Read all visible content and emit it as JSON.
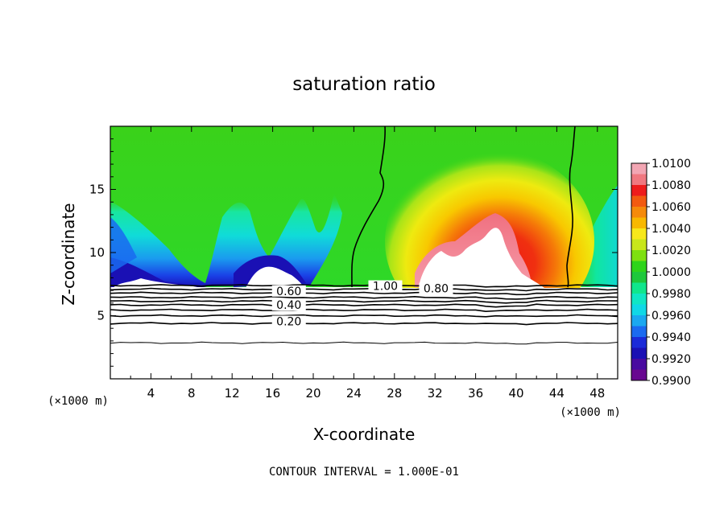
{
  "chart_data": {
    "type": "heatmap",
    "title": "saturation ratio",
    "xlabel": "X-coordinate",
    "ylabel": "Z-coordinate",
    "x_unit": "(×1000 m)",
    "y_unit": "",
    "xlim": [
      0,
      50
    ],
    "ylim": [
      0,
      20
    ],
    "x_ticks": [
      4,
      8,
      12,
      16,
      20,
      24,
      28,
      32,
      36,
      40,
      44,
      48
    ],
    "y_ticks": [
      5,
      10,
      15
    ],
    "footer": "CONTOUR INTERVAL = 1.000E-01",
    "colorbar": {
      "min": 0.99,
      "max": 1.01,
      "labels": [
        "1.0100",
        "1.0080",
        "1.0060",
        "1.0040",
        "1.0020",
        "1.0000",
        "0.9980",
        "0.9960",
        "0.9940",
        "0.9920",
        "0.9900"
      ],
      "colors": [
        "#f2a6b3",
        "#f07880",
        "#ee1c1c",
        "#f25a10",
        "#f58a0a",
        "#f8b800",
        "#f7e81a",
        "#c8e61a",
        "#7ee010",
        "#2ed41a",
        "#1ec83c",
        "#10e68c",
        "#10e6c4",
        "#10d8e6",
        "#1aa8f0",
        "#1a6af0",
        "#1a2ad8",
        "#1a10b4",
        "#480aa0",
        "#680890"
      ]
    },
    "contour_labels": [
      {
        "text": "1.00",
        "x": 27.1,
        "z": 7.1
      },
      {
        "text": "0.80",
        "x": 32.1,
        "z": 6.9
      },
      {
        "text": "0.60",
        "x": 17.6,
        "z": 6.7
      },
      {
        "text": "0.40",
        "x": 17.6,
        "z": 5.6
      },
      {
        "text": "0.20",
        "x": 17.6,
        "z": 4.3
      }
    ],
    "contours_below": [
      {
        "level": 1.0,
        "z": 7.4
      },
      {
        "level": 0.9,
        "z": 7.1
      },
      {
        "level": 0.8,
        "z": 6.8
      },
      {
        "level": 0.7,
        "z": 6.45
      },
      {
        "level": 0.6,
        "z": 6.15
      },
      {
        "level": 0.5,
        "z": 5.85
      },
      {
        "level": 0.4,
        "z": 5.45
      },
      {
        "level": 0.3,
        "z": 5.0
      },
      {
        "level": 0.2,
        "z": 4.4
      },
      {
        "level": 0.1,
        "z": 2.85
      }
    ]
  }
}
